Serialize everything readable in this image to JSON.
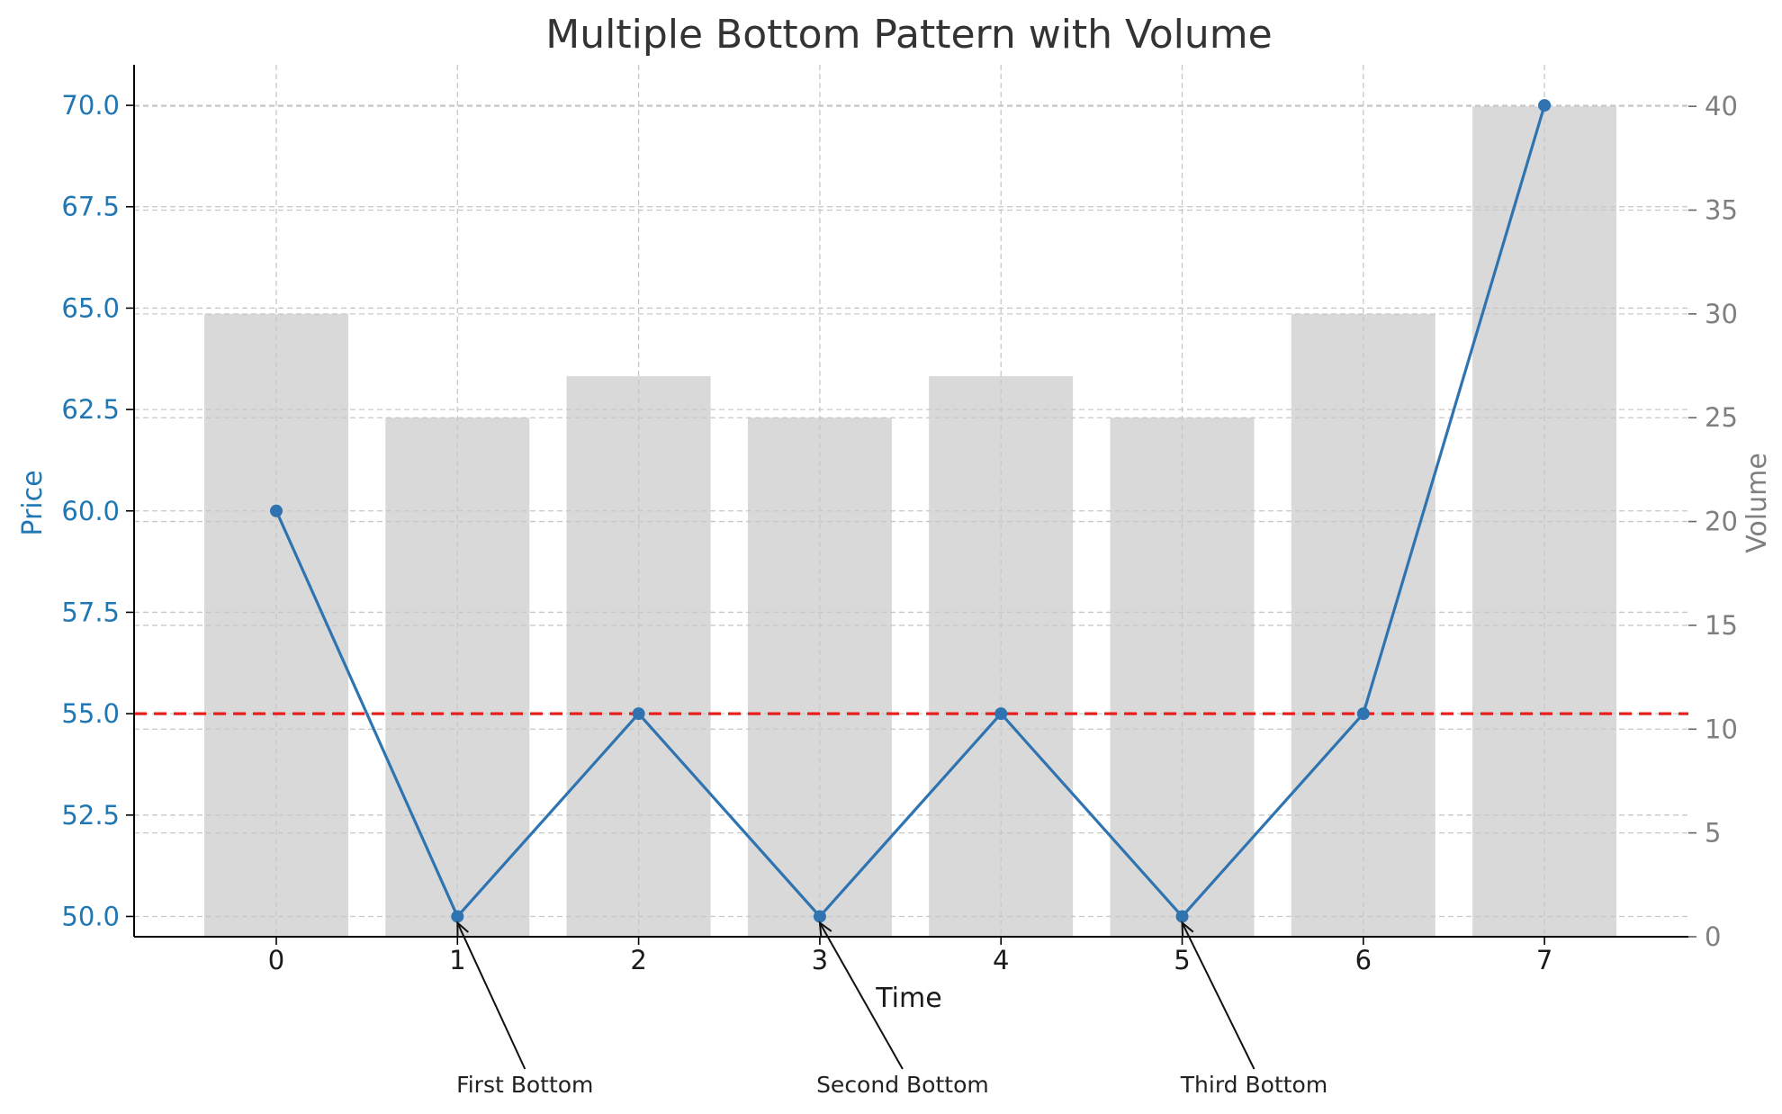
{
  "chart_data": {
    "type": "bar+line",
    "title": "Multiple Bottom Pattern with Volume",
    "xlabel": "Time",
    "ylabel_left": "Price",
    "ylabel_right": "Volume",
    "x": [
      0,
      1,
      2,
      3,
      4,
      5,
      6,
      7
    ],
    "series": [
      {
        "axis": "left",
        "type": "line",
        "values": [
          60,
          50,
          55,
          50,
          55,
          50,
          55,
          70
        ]
      },
      {
        "axis": "right",
        "type": "bar",
        "values": [
          30,
          25,
          27,
          25,
          27,
          25,
          30,
          40
        ]
      }
    ],
    "resistance_level": 55,
    "left_axis": {
      "ylim": [
        49.5,
        71.0
      ],
      "ticks": [
        "50.0",
        "52.5",
        "55.0",
        "57.5",
        "60.0",
        "62.5",
        "65.0",
        "67.5",
        "70.0"
      ]
    },
    "right_axis": {
      "ylim": [
        0,
        42
      ],
      "ticks": [
        "0",
        "5",
        "10",
        "15",
        "20",
        "25",
        "30",
        "35",
        "40"
      ]
    },
    "xticks": [
      "0",
      "1",
      "2",
      "3",
      "4",
      "5",
      "6",
      "7"
    ],
    "annotations": [
      {
        "text": "First Bottom",
        "x": 1,
        "y": 50
      },
      {
        "text": "Second Bottom",
        "x": 3,
        "y": 50
      },
      {
        "text": "Third Bottom",
        "x": 5,
        "y": 50
      }
    ],
    "grid": true,
    "colors": {
      "price": "#2f74b0",
      "volume": "#d9d9d9",
      "resistance": "#e8201d",
      "price_axis": "#1f77b4",
      "volume_axis": "#7f7f7f"
    }
  }
}
